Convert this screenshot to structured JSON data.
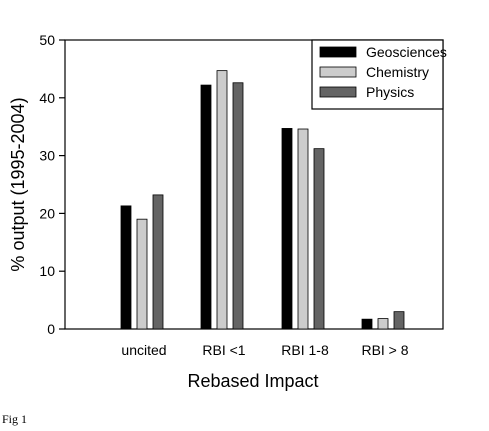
{
  "chart_data": {
    "type": "bar",
    "xlabel": "Rebased Impact",
    "ylabel": "% output (1995-2004)",
    "ylim": [
      0,
      50
    ],
    "yticks": [
      0,
      10,
      20,
      30,
      40,
      50
    ],
    "categories": [
      "uncited",
      "RBI <1",
      "RBI 1-8",
      "RBI > 8"
    ],
    "series": [
      {
        "name": "Geosciences",
        "color": "#000000",
        "values": [
          21.3,
          42.2,
          34.7,
          1.7
        ]
      },
      {
        "name": "Chemistry",
        "color": "#cccccc",
        "values": [
          19.0,
          44.7,
          34.6,
          1.8
        ]
      },
      {
        "name": "Physics",
        "color": "#646464",
        "values": [
          23.2,
          42.6,
          31.2,
          3.0
        ]
      }
    ],
    "legend_position": "top-right",
    "grid": false
  },
  "caption": "Fig 1"
}
